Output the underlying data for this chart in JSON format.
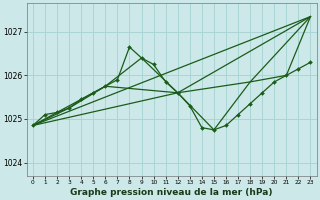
{
  "title": "Graphe pression niveau de la mer (hPa)",
  "bg_color": "#cce8e8",
  "grid_color": "#aad4d4",
  "line_color": "#1a5c1a",
  "marker_color": "#1a5c1a",
  "xlim": [
    -0.5,
    23.5
  ],
  "ylim": [
    1023.7,
    1027.65
  ],
  "yticks": [
    1024,
    1025,
    1026,
    1027
  ],
  "xticks": [
    0,
    1,
    2,
    3,
    4,
    5,
    6,
    7,
    8,
    9,
    10,
    11,
    12,
    13,
    14,
    15,
    16,
    17,
    18,
    19,
    20,
    21,
    22,
    23
  ],
  "series": [
    {
      "x": [
        0,
        1,
        2,
        3,
        4,
        5,
        6,
        7,
        8,
        9,
        10,
        11,
        12,
        13,
        14,
        15,
        16,
        17,
        18,
        19,
        20,
        21,
        22,
        23
      ],
      "y": [
        1024.85,
        1025.1,
        1025.15,
        1025.25,
        1025.45,
        1025.6,
        1025.75,
        1025.9,
        1026.65,
        1026.4,
        1026.25,
        1025.85,
        1025.6,
        1025.3,
        1024.8,
        1024.75,
        1024.85,
        1025.1,
        1025.35,
        1025.6,
        1025.85,
        1026.0,
        1026.15,
        1026.3
      ],
      "marker": true,
      "lw": 0.9
    },
    {
      "comment": "6-hourly line 0,6,12,18,23 going high",
      "x": [
        0,
        6,
        12,
        18,
        23
      ],
      "y": [
        1024.85,
        1025.75,
        1025.6,
        1025.85,
        1027.35
      ],
      "marker": false,
      "lw": 0.9
    },
    {
      "x": [
        0,
        3,
        6,
        9,
        12,
        15,
        18,
        21,
        23
      ],
      "y": [
        1024.85,
        1025.25,
        1025.75,
        1026.4,
        1025.6,
        1024.75,
        1025.85,
        1026.0,
        1027.35
      ],
      "marker": false,
      "lw": 0.9
    },
    {
      "x": [
        0,
        12,
        23
      ],
      "y": [
        1024.85,
        1025.6,
        1027.35
      ],
      "marker": false,
      "lw": 0.9
    },
    {
      "x": [
        0,
        23
      ],
      "y": [
        1024.85,
        1027.35
      ],
      "marker": false,
      "lw": 0.9
    }
  ]
}
